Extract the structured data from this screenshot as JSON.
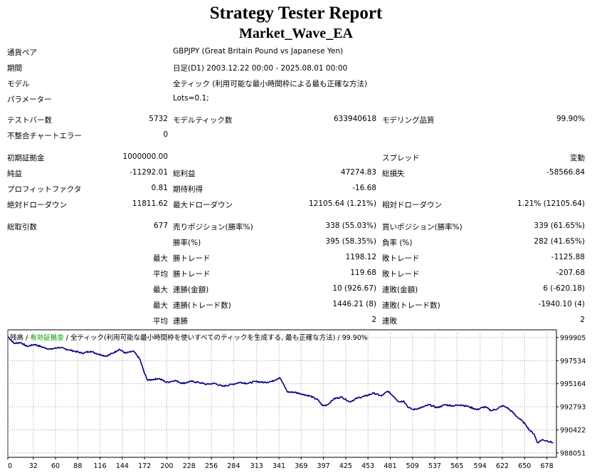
{
  "header": {
    "title": "Strategy Tester Report",
    "subtitle": "Market_Wave_EA"
  },
  "settings": [
    {
      "label": "通貨ペア",
      "value": "GBPJPY (Great Britain Pound vs Japanese Yen)"
    },
    {
      "label": "期間",
      "value": "日足(D1) 2003.12.22 00:00 - 2025.08.01 00:00"
    },
    {
      "label": "モデル",
      "value": "全ティック (利用可能な最小時間枠による最も正確な方法)"
    },
    {
      "label": "パラメーター",
      "value": "Lots=0.1;"
    }
  ],
  "stats": {
    "bars_label": "テストバー数",
    "bars_value": "5732",
    "ticks_label": "モデルティック数",
    "ticks_value": "633940618",
    "quality_label": "モデリング品質",
    "quality_value": "99.90%",
    "mismatch_label": "不整合チャートエラー",
    "mismatch_value": "0",
    "deposit_label": "初期証拠金",
    "deposit_value": "1000000.00",
    "spread_label": "スプレッド",
    "spread_value": "変動",
    "net_label": "純益",
    "net_value": "-11292.01",
    "gross_profit_label": "総利益",
    "gross_profit_value": "47274.83",
    "gross_loss_label": "総損失",
    "gross_loss_value": "-58566.84",
    "pf_label": "プロフィットファクタ",
    "pf_value": "0.81",
    "expected_label": "期待利得",
    "expected_value": "-16.68",
    "abs_dd_label": "絶対ドローダウン",
    "abs_dd_value": "11811.62",
    "max_dd_label": "最大ドローダウン",
    "max_dd_value": "12105.64 (1.21%)",
    "rel_dd_label": "相対ドローダウン",
    "rel_dd_value": "1.21% (12105.64)",
    "trades_label": "総取引数",
    "trades_value": "677",
    "short_label": "売りポジション(勝率%)",
    "short_value": "338 (55.03%)",
    "long_label": "買いポジション(勝率%)",
    "long_value": "339 (61.65%)",
    "win_label": "勝率(%)",
    "win_value": "395 (58.35%)",
    "loss_label": "負率 (%)",
    "loss_value": "282 (41.65%)",
    "max_word": "最大",
    "avg_word": "平均",
    "largest_win_label": "勝トレード",
    "largest_win_value": "1198.12",
    "largest_loss_label": "敗トレード",
    "largest_loss_value": "-1125.88",
    "avg_win_label": "勝トレード",
    "avg_win_value": "119.68",
    "avg_loss_label": "敗トレード",
    "avg_loss_value": "-207.68",
    "consec_wins_amt_label": "連勝(金額)",
    "consec_wins_amt_value": "10 (926.67)",
    "consec_losses_amt_label": "連敗(金額)",
    "consec_losses_amt_value": "6 (-620.18)",
    "consec_profit_label": "連勝(トレード数)",
    "consec_profit_value": "1446.21 (8)",
    "consec_loss_label": "連敗(トレード数)",
    "consec_loss_value": "-1940.10 (4)",
    "avg_consec_wins_label": "連勝",
    "avg_consec_wins_value": "2",
    "avg_consec_losses_label": "連敗",
    "avg_consec_losses_value": "2"
  },
  "chart_legend": {
    "balance": "残高",
    "sep": " / ",
    "margin": "有効証拠金",
    "info": "全ティック(利用可能な最小時間枠を使いすべてのティックを生成する, 最も正確な方法)",
    "quality": "99.90%",
    "balance_color": "#000000",
    "margin_color": "#00a000"
  },
  "chart_data": {
    "type": "line",
    "x_ticks": [
      "0",
      "32",
      "60",
      "88",
      "116",
      "144",
      "172",
      "200",
      "228",
      "256",
      "284",
      "313",
      "341",
      "369",
      "397",
      "425",
      "453",
      "481",
      "509",
      "537",
      "565",
      "594",
      "622",
      "650",
      "678"
    ],
    "y_ticks": [
      "999905",
      "997534",
      "995164",
      "992793",
      "990422",
      "988051"
    ],
    "xlim": [
      0,
      690
    ],
    "ylim": [
      987600,
      1000700
    ],
    "series": [
      {
        "color": "#000080",
        "points": [
          [
            0,
            1000000
          ],
          [
            8,
            999300
          ],
          [
            16,
            999400
          ],
          [
            24,
            999000
          ],
          [
            34,
            999200
          ],
          [
            44,
            998900
          ],
          [
            54,
            998700
          ],
          [
            64,
            998900
          ],
          [
            74,
            998700
          ],
          [
            84,
            998500
          ],
          [
            94,
            998300
          ],
          [
            104,
            998500
          ],
          [
            114,
            998200
          ],
          [
            124,
            998000
          ],
          [
            132,
            998300
          ],
          [
            140,
            998700
          ],
          [
            148,
            998300
          ],
          [
            158,
            998500
          ],
          [
            166,
            997700
          ],
          [
            172,
            996200
          ],
          [
            176,
            995500
          ],
          [
            182,
            995600
          ],
          [
            190,
            995700
          ],
          [
            200,
            995300
          ],
          [
            210,
            995500
          ],
          [
            220,
            995200
          ],
          [
            230,
            995400
          ],
          [
            240,
            995300
          ],
          [
            250,
            995100
          ],
          [
            260,
            995200
          ],
          [
            270,
            994900
          ],
          [
            282,
            995100
          ],
          [
            292,
            995300
          ],
          [
            302,
            995200
          ],
          [
            312,
            995400
          ],
          [
            322,
            995300
          ],
          [
            332,
            995400
          ],
          [
            342,
            995800
          ],
          [
            348,
            994900
          ],
          [
            352,
            994300
          ],
          [
            360,
            994300
          ],
          [
            370,
            994100
          ],
          [
            380,
            993900
          ],
          [
            390,
            993500
          ],
          [
            396,
            992900
          ],
          [
            402,
            993000
          ],
          [
            410,
            993600
          ],
          [
            420,
            993800
          ],
          [
            430,
            993300
          ],
          [
            440,
            993700
          ],
          [
            450,
            993900
          ],
          [
            460,
            994200
          ],
          [
            470,
            993900
          ],
          [
            478,
            994400
          ],
          [
            486,
            993800
          ],
          [
            492,
            993300
          ],
          [
            498,
            993400
          ],
          [
            504,
            992700
          ],
          [
            510,
            992500
          ],
          [
            520,
            992700
          ],
          [
            530,
            993000
          ],
          [
            540,
            992700
          ],
          [
            550,
            993000
          ],
          [
            560,
            992900
          ],
          [
            570,
            993000
          ],
          [
            580,
            992800
          ],
          [
            590,
            992500
          ],
          [
            600,
            992800
          ],
          [
            608,
            992400
          ],
          [
            616,
            992600
          ],
          [
            622,
            992900
          ],
          [
            628,
            992700
          ],
          [
            634,
            992300
          ],
          [
            640,
            991800
          ],
          [
            646,
            991400
          ],
          [
            652,
            990900
          ],
          [
            656,
            990400
          ],
          [
            662,
            990000
          ],
          [
            666,
            989100
          ],
          [
            672,
            989400
          ],
          [
            678,
            989300
          ],
          [
            686,
            989100
          ]
        ]
      }
    ]
  }
}
